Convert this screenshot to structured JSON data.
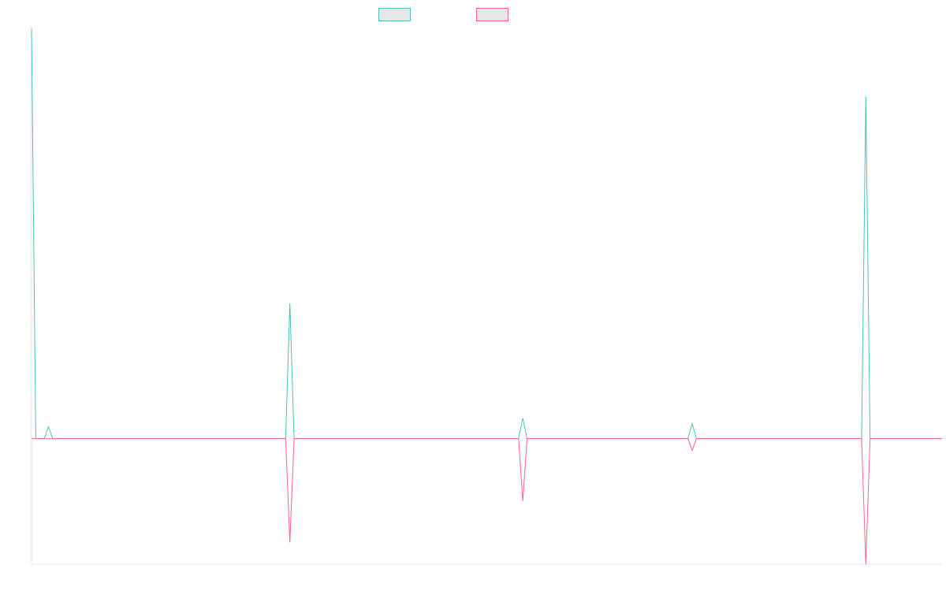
{
  "chart_data": {
    "type": "line",
    "title": "",
    "xlabel": "",
    "ylabel": "",
    "grid": false,
    "legend_position": "top-center",
    "x": [
      0,
      1,
      2,
      3,
      4,
      5,
      6,
      7,
      8,
      9,
      10,
      11,
      12,
      13,
      14,
      15,
      16,
      17,
      18,
      19,
      20,
      21,
      22,
      23,
      24,
      25,
      26,
      27,
      28,
      29,
      30,
      31,
      32,
      33,
      34,
      35,
      36,
      37,
      38,
      39,
      40,
      41,
      42,
      43,
      44,
      45,
      46,
      47,
      48,
      49,
      50,
      51,
      52,
      53,
      54,
      55,
      56,
      57,
      58,
      59,
      60,
      61,
      62,
      63,
      64,
      65,
      66,
      67,
      68,
      69,
      70,
      71,
      72,
      73,
      74,
      75,
      76,
      77,
      78,
      79,
      80,
      81,
      82,
      83,
      84,
      85,
      86,
      87,
      88,
      89,
      90,
      91,
      92,
      93,
      94,
      95,
      96,
      97,
      98,
      99,
      100,
      101,
      102,
      103,
      104,
      105,
      106,
      107,
      108,
      109,
      110,
      111,
      112,
      113,
      114,
      115,
      116,
      117,
      118,
      119,
      120,
      121,
      122,
      123,
      124,
      125,
      126,
      127,
      128,
      129,
      130,
      131,
      132,
      133,
      134,
      135,
      136,
      137,
      138,
      139,
      140,
      141,
      142,
      143,
      144,
      145,
      146,
      147,
      148,
      149,
      150,
      151,
      152,
      153,
      154,
      155,
      156,
      157,
      158,
      159,
      160,
      161,
      162,
      163,
      164,
      165,
      166,
      167,
      168,
      169,
      170,
      171,
      172,
      173,
      174,
      175,
      176,
      177,
      178,
      179,
      180,
      181,
      182,
      183,
      184,
      185,
      186,
      187,
      188,
      189,
      190,
      191,
      192,
      193,
      194,
      195,
      196,
      197,
      198,
      199,
      200,
      201,
      202,
      203,
      204,
      205,
      206,
      207,
      208,
      209,
      210,
      211,
      212,
      213,
      214,
      215
    ],
    "x_range": [
      0,
      215
    ],
    "y_range": [
      -30,
      98
    ],
    "series": [
      {
        "name": "",
        "color": "#4bc0c0",
        "fill": "#e6e6e6",
        "points": [
          [
            0,
            98
          ],
          [
            1,
            0
          ],
          [
            3,
            0
          ],
          [
            4,
            2.8
          ],
          [
            5,
            0
          ],
          [
            60,
            0
          ],
          [
            61,
            32.3
          ],
          [
            62,
            0
          ],
          [
            115,
            0
          ],
          [
            116,
            4.9
          ],
          [
            117,
            0
          ],
          [
            155,
            0
          ],
          [
            156,
            3.6
          ],
          [
            157,
            0
          ],
          [
            196,
            0
          ],
          [
            197,
            81.7
          ],
          [
            198,
            0
          ],
          [
            215,
            0
          ]
        ]
      },
      {
        "name": "",
        "color": "#ff6384",
        "fill": "#e6e6e6",
        "points": [
          [
            0,
            0
          ],
          [
            60,
            0
          ],
          [
            61,
            -24.8
          ],
          [
            62,
            0
          ],
          [
            115,
            0
          ],
          [
            116,
            -14.9
          ],
          [
            117,
            0
          ],
          [
            155,
            0
          ],
          [
            156,
            -2.8
          ],
          [
            157,
            0
          ],
          [
            196,
            0
          ],
          [
            197,
            -30
          ],
          [
            198,
            0
          ],
          [
            215,
            0
          ]
        ]
      }
    ]
  }
}
